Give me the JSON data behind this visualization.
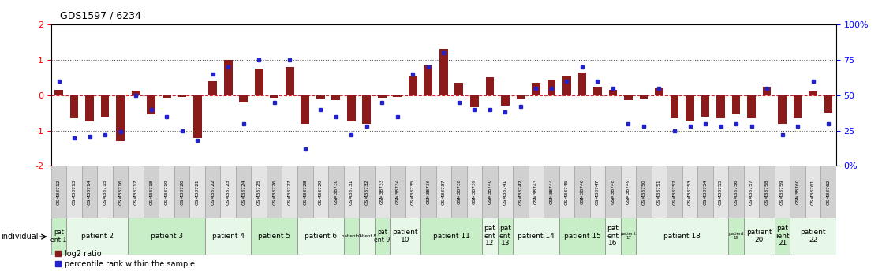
{
  "title": "GDS1597 / 6234",
  "gsm_labels": [
    "GSM38712",
    "GSM38713",
    "GSM38714",
    "GSM38715",
    "GSM38716",
    "GSM38717",
    "GSM38718",
    "GSM38719",
    "GSM38720",
    "GSM38721",
    "GSM38722",
    "GSM38723",
    "GSM38724",
    "GSM38725",
    "GSM38726",
    "GSM38727",
    "GSM38728",
    "GSM38729",
    "GSM38730",
    "GSM38731",
    "GSM38732",
    "GSM38733",
    "GSM38734",
    "GSM38735",
    "GSM38736",
    "GSM38737",
    "GSM38738",
    "GSM38739",
    "GSM38740",
    "GSM38741",
    "GSM38742",
    "GSM38743",
    "GSM38744",
    "GSM38745",
    "GSM38746",
    "GSM38747",
    "GSM38748",
    "GSM38749",
    "GSM38750",
    "GSM38751",
    "GSM38752",
    "GSM38753",
    "GSM38754",
    "GSM38755",
    "GSM38756",
    "GSM38757",
    "GSM38758",
    "GSM38759",
    "GSM38760",
    "GSM38761",
    "GSM38762"
  ],
  "log2_ratios": [
    0.15,
    -0.65,
    -0.75,
    -0.6,
    -1.3,
    0.12,
    -0.55,
    -0.08,
    -0.05,
    -1.2,
    0.4,
    1.0,
    -0.2,
    0.75,
    -0.08,
    0.8,
    -0.8,
    -0.1,
    -0.15,
    -0.75,
    -0.8,
    -0.08,
    -0.05,
    0.55,
    0.85,
    1.3,
    0.35,
    -0.35,
    0.5,
    -0.3,
    -0.1,
    0.35,
    0.45,
    0.55,
    0.65,
    0.25,
    0.15,
    -0.15,
    -0.1,
    0.2,
    -0.65,
    -0.75,
    -0.6,
    -0.65,
    -0.55,
    -0.65,
    0.25,
    -0.8,
    -0.65,
    0.1,
    -0.5
  ],
  "percentile_ranks": [
    60,
    20,
    21,
    22,
    24,
    50,
    40,
    35,
    25,
    18,
    65,
    70,
    30,
    75,
    45,
    75,
    12,
    40,
    35,
    22,
    28,
    45,
    35,
    65,
    70,
    80,
    45,
    40,
    40,
    38,
    42,
    55,
    55,
    60,
    70,
    60,
    55,
    30,
    28,
    55,
    25,
    28,
    30,
    28,
    30,
    28,
    55,
    22,
    28,
    60,
    30
  ],
  "patient_groups": [
    {
      "label": "pat\nent 1",
      "start": 0,
      "end": 0,
      "color": "#c8eec8"
    },
    {
      "label": "patient 2",
      "start": 1,
      "end": 4,
      "color": "#e8f8e8"
    },
    {
      "label": "patient 3",
      "start": 5,
      "end": 9,
      "color": "#c8eec8"
    },
    {
      "label": "patient 4",
      "start": 10,
      "end": 12,
      "color": "#e8f8e8"
    },
    {
      "label": "patient 5",
      "start": 13,
      "end": 15,
      "color": "#c8eec8"
    },
    {
      "label": "patient 6",
      "start": 16,
      "end": 18,
      "color": "#e8f8e8"
    },
    {
      "label": "patient 7",
      "start": 19,
      "end": 19,
      "color": "#c8eec8"
    },
    {
      "label": "patient 8",
      "start": 20,
      "end": 20,
      "color": "#e8f8e8"
    },
    {
      "label": "pat\nent 9",
      "start": 21,
      "end": 21,
      "color": "#c8eec8"
    },
    {
      "label": "patient\n10",
      "start": 22,
      "end": 23,
      "color": "#e8f8e8"
    },
    {
      "label": "patient 11",
      "start": 24,
      "end": 27,
      "color": "#c8eec8"
    },
    {
      "label": "pat\nent\n12",
      "start": 28,
      "end": 28,
      "color": "#e8f8e8"
    },
    {
      "label": "pat\nent\n13",
      "start": 29,
      "end": 29,
      "color": "#c8eec8"
    },
    {
      "label": "patient 14",
      "start": 30,
      "end": 32,
      "color": "#e8f8e8"
    },
    {
      "label": "patient 15",
      "start": 33,
      "end": 35,
      "color": "#c8eec8"
    },
    {
      "label": "pat\nent\n16",
      "start": 36,
      "end": 36,
      "color": "#e8f8e8"
    },
    {
      "label": "patient\n17",
      "start": 37,
      "end": 37,
      "color": "#c8eec8"
    },
    {
      "label": "patient 18",
      "start": 38,
      "end": 43,
      "color": "#e8f8e8"
    },
    {
      "label": "patient\n19",
      "start": 44,
      "end": 44,
      "color": "#c8eec8"
    },
    {
      "label": "patient\n20",
      "start": 45,
      "end": 46,
      "color": "#e8f8e8"
    },
    {
      "label": "pat\nient\n21",
      "start": 47,
      "end": 47,
      "color": "#c8eec8"
    },
    {
      "label": "patient\n22",
      "start": 48,
      "end": 50,
      "color": "#e8f8e8"
    }
  ],
  "ylim": [
    -2,
    2
  ],
  "left_yticks": [
    -2,
    -1,
    0,
    1,
    2
  ],
  "left_yticklabels": [
    "-2",
    "-1",
    "0",
    "1",
    "2"
  ],
  "right_yticks": [
    0,
    25,
    50,
    75,
    100
  ],
  "right_yticklabels": [
    "0%",
    "25",
    "50",
    "75",
    "100%"
  ],
  "bar_color": "#8B1A1A",
  "dot_color": "#2222CC",
  "hline0_color": "#CC0000",
  "hline1_color": "#555555"
}
